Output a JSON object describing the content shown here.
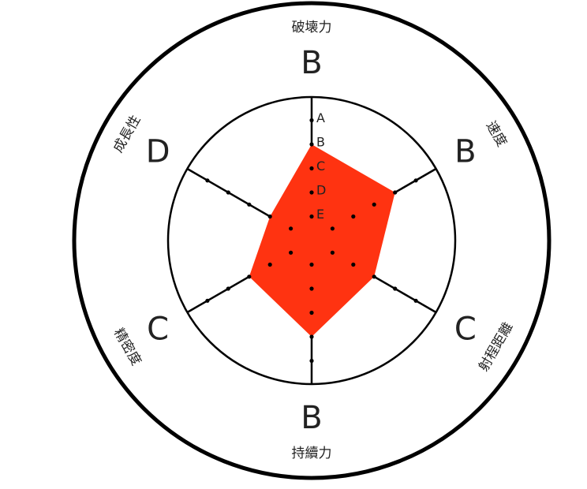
{
  "chart_data": {
    "type": "radar",
    "scale_labels": [
      "A",
      "B",
      "C",
      "D",
      "E"
    ],
    "categories": [
      "破壊力",
      "速度",
      "射程距離",
      "持續力",
      "精密度",
      "成長性"
    ],
    "grades": [
      "B",
      "B",
      "C",
      "B",
      "C",
      "D"
    ],
    "values": [
      4,
      4,
      3,
      4,
      3,
      2
    ],
    "scale_max": 5,
    "colors": {
      "fill": "#ff3311",
      "line": "#000000"
    }
  }
}
